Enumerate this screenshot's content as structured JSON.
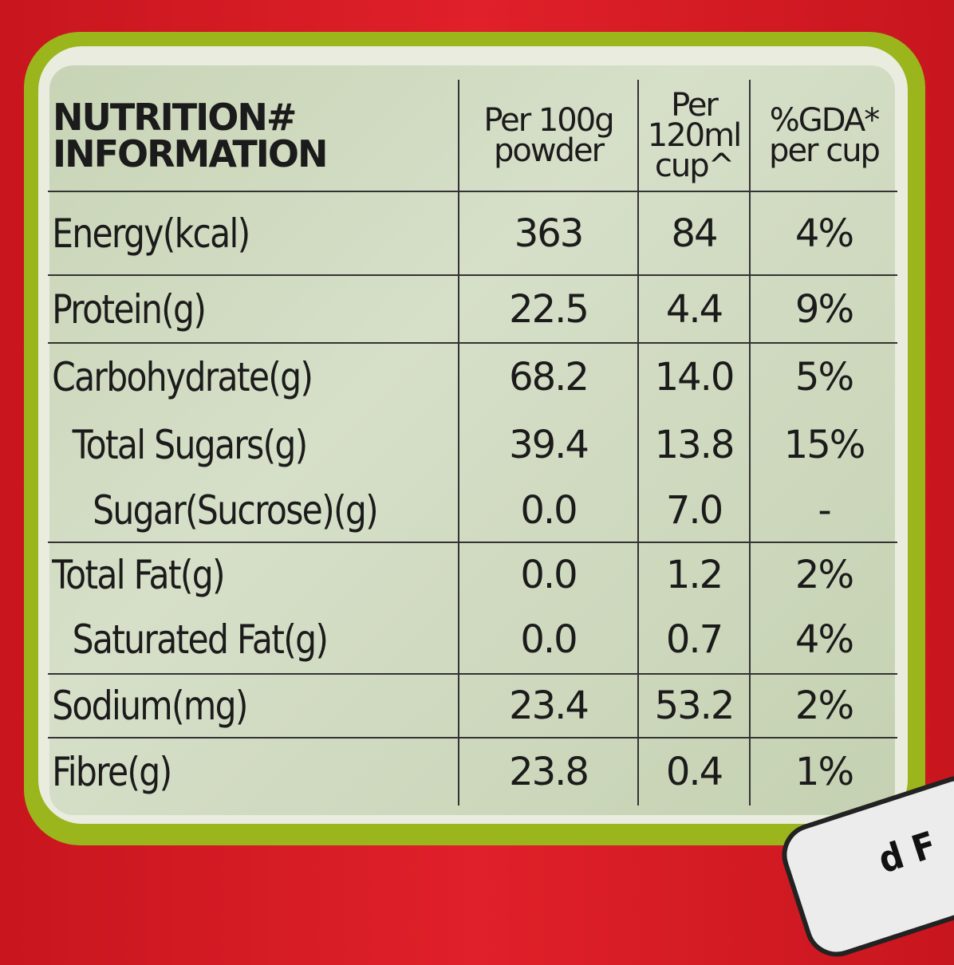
{
  "header": {
    "title_line1": "NUTRITION#",
    "title_line2": "INFORMATION",
    "col1": "Per 100g powder",
    "col2": "Per 120ml cup^",
    "col3": "%GDA* per cup"
  },
  "rows": [
    {
      "label": "Energy(kcal)",
      "per100g": "363",
      "perCup": "84",
      "gda": "4%",
      "indent": 0
    },
    {
      "label": "Protein(g)",
      "per100g": "22.5",
      "perCup": "4.4",
      "gda": "9%",
      "indent": 0
    },
    {
      "label": "Carbohydrate(g)",
      "per100g": "68.2",
      "perCup": "14.0",
      "gda": "5%",
      "indent": 0
    },
    {
      "label": "Total Sugars(g)",
      "per100g": "39.4",
      "perCup": "13.8",
      "gda": "15%",
      "indent": 1
    },
    {
      "label": "Sugar(Sucrose)(g)",
      "per100g": "0.0",
      "perCup": "7.0",
      "gda": "-",
      "indent": 2
    },
    {
      "label": "Total Fat(g)",
      "per100g": "0.0",
      "perCup": "1.2",
      "gda": "2%",
      "indent": 0
    },
    {
      "label": "Saturated Fat(g)",
      "per100g": "0.0",
      "perCup": "0.7",
      "gda": "4%",
      "indent": 1
    },
    {
      "label": "Sodium(mg)",
      "per100g": "23.4",
      "perCup": "53.2",
      "gda": "2%",
      "indent": 0
    },
    {
      "label": "Fibre(g)",
      "per100g": "23.8",
      "perCup": "0.4",
      "gda": "1%",
      "indent": 0
    }
  ],
  "corner_text": "d F",
  "colors": {
    "package_red": "#d81c24",
    "frame_green": "#9bb51c",
    "panel": "#cfd9bf"
  }
}
